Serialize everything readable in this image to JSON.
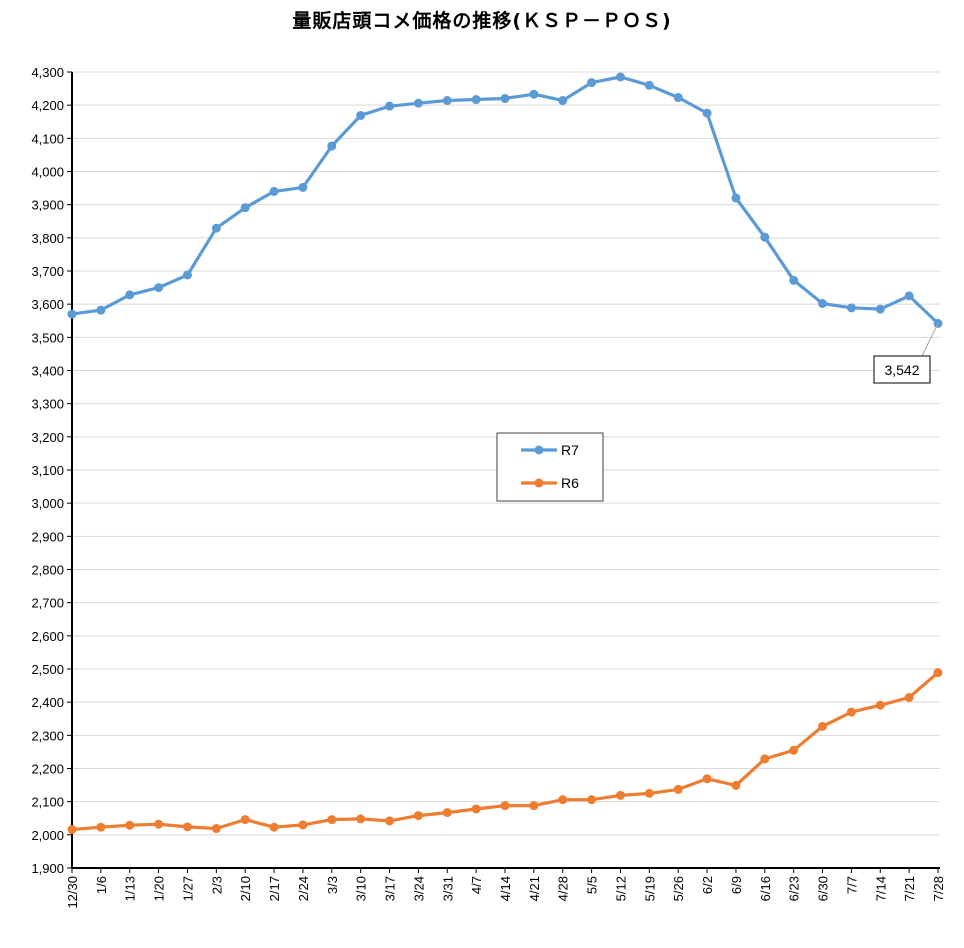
{
  "chart_data": {
    "type": "line",
    "title": "量販店頭コメ価格の推移(ＫＳＰ－ＰＯＳ)",
    "xlabel": "",
    "ylabel": "",
    "ylim": [
      1900,
      4300
    ],
    "y_ticks": [
      1900,
      2000,
      2100,
      2200,
      2300,
      2400,
      2500,
      2600,
      2700,
      2800,
      2900,
      3000,
      3100,
      3200,
      3300,
      3400,
      3500,
      3600,
      3700,
      3800,
      3900,
      4000,
      4100,
      4200,
      4300
    ],
    "y_tick_labels": [
      "1,900",
      "2,000",
      "2,100",
      "2,200",
      "2,300",
      "2,400",
      "2,500",
      "2,600",
      "2,700",
      "2,800",
      "2,900",
      "3,000",
      "3,100",
      "3,200",
      "3,300",
      "3,400",
      "3,500",
      "3,600",
      "3,700",
      "3,800",
      "3,900",
      "4,000",
      "4,100",
      "4,200",
      "4,300"
    ],
    "grid": true,
    "legend_position": "center",
    "categories": [
      "12/30",
      "1/6",
      "1/13",
      "1/20",
      "1/27",
      "2/3",
      "2/10",
      "2/17",
      "2/24",
      "3/3",
      "3/10",
      "3/17",
      "3/24",
      "3/31",
      "4/7",
      "4/14",
      "4/21",
      "4/28",
      "5/5",
      "5/12",
      "5/19",
      "5/26",
      "6/2",
      "6/9",
      "6/16",
      "6/23",
      "6/30",
      "7/7",
      "7/14",
      "7/21",
      "7/28"
    ],
    "series": [
      {
        "name": "R7",
        "color": "#5b9bd5",
        "values": [
          3570,
          3582,
          3628,
          3650,
          3688,
          3829,
          3891,
          3940,
          3952,
          4077,
          4169,
          4197,
          4206,
          4214,
          4217,
          4220,
          4233,
          4214,
          4268,
          4285,
          4260,
          4223,
          4176,
          3920,
          3802,
          3672,
          3602,
          3589,
          3585,
          3625,
          3542
        ]
      },
      {
        "name": "R6",
        "color": "#ed7d31",
        "values": [
          2016,
          2023,
          2029,
          2032,
          2024,
          2019,
          2046,
          2023,
          2030,
          2046,
          2048,
          2042,
          2058,
          2067,
          2078,
          2088,
          2088,
          2106,
          2106,
          2119,
          2125,
          2137,
          2169,
          2149,
          2229,
          2255,
          2327,
          2370,
          2391,
          2414,
          2489
        ]
      }
    ],
    "annotations": [
      {
        "series": "R7",
        "category": "7/28",
        "label": "3,542"
      }
    ]
  }
}
